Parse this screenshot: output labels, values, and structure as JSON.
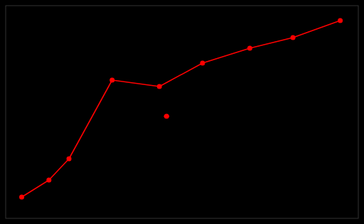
{
  "chart_data": {
    "type": "line",
    "series": [
      {
        "type": "line",
        "color": "#ff0000",
        "marker": "circle",
        "line_style": "solid",
        "x": [
          -2.5228787452803374,
          -2.2218487496163566,
          -2,
          -1.5228787452803376,
          -1,
          -0.5228787452803376,
          0,
          0.47712125471966244,
          1
        ],
        "values": [
          10.0,
          18.0,
          28.0,
          65.0,
          62.0,
          73.0,
          80.0,
          85.0,
          93.0
        ]
      },
      {
        "type": "scatter",
        "color": "#ff0000",
        "marker": "circle",
        "x": [
          -0.9208187539523751
        ],
        "values": [
          48.0
        ],
        "x_error": [
          0.03
        ]
      }
    ],
    "xlim": [
      -2.7,
      1.2
    ],
    "ylim": [
      0,
      100
    ],
    "tick_labels": false
  }
}
